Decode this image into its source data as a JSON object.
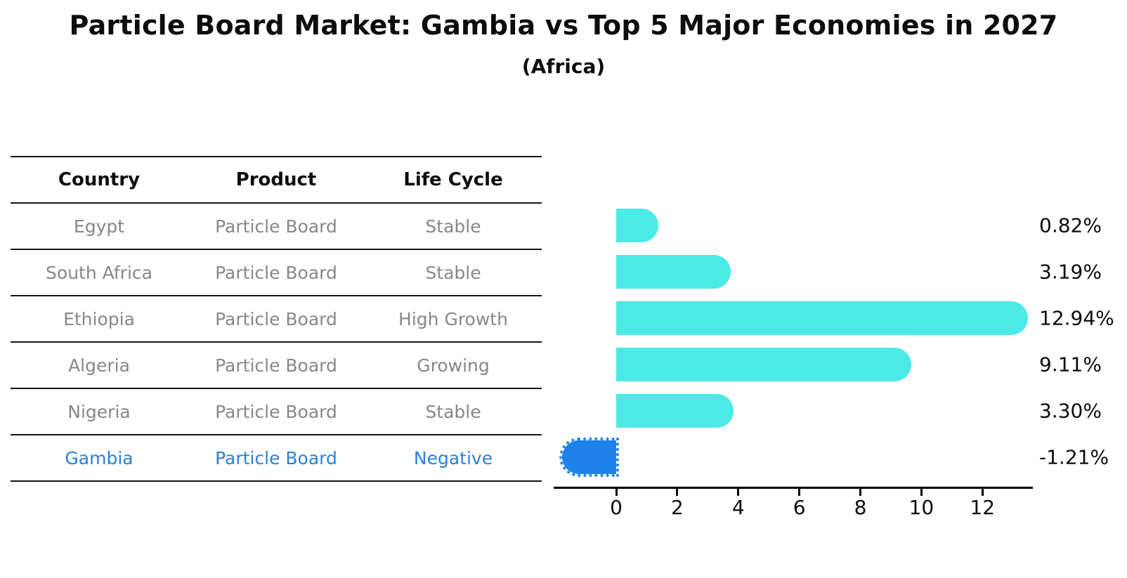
{
  "title": "Particle Board Market: Gambia vs Top 5 Major Economies in 2027",
  "subtitle": "(Africa)",
  "colors": {
    "bar_default": "#4CE9E6",
    "bar_highlight": "#1E82EA",
    "highlight_text": "#2980D9",
    "table_text": "#878787",
    "heading_text": "#0D0D0D",
    "axis": "#000000"
  },
  "table": {
    "headers": [
      "Country",
      "Product",
      "Life Cycle"
    ],
    "rows": [
      {
        "country": "Egypt",
        "product": "Particle Board",
        "life_cycle": "Stable",
        "highlight": false
      },
      {
        "country": "South Africa",
        "product": "Particle Board",
        "life_cycle": "Stable",
        "highlight": false
      },
      {
        "country": "Ethiopia",
        "product": "Particle Board",
        "life_cycle": "High Growth",
        "highlight": false
      },
      {
        "country": "Algeria",
        "product": "Particle Board",
        "life_cycle": "Growing",
        "highlight": false
      },
      {
        "country": "Nigeria",
        "product": "Particle Board",
        "life_cycle": "Stable",
        "highlight": false
      },
      {
        "country": "Gambia",
        "product": "Particle Board",
        "life_cycle": "Negative",
        "highlight": true
      }
    ]
  },
  "chart_data": {
    "type": "bar",
    "orientation": "horizontal",
    "title": "Particle Board Market: Gambia vs Top 5 Major Economies in 2027 (Africa)",
    "categories": [
      "Egypt",
      "South Africa",
      "Ethiopia",
      "Algeria",
      "Nigeria",
      "Gambia"
    ],
    "values": [
      0.82,
      3.19,
      12.94,
      9.11,
      3.3,
      -1.21
    ],
    "value_labels": [
      "0.82%",
      "3.19%",
      "12.94%",
      "9.11%",
      "3.30%",
      "-1.21%"
    ],
    "highlight_category": "Gambia",
    "x_ticks": [
      0,
      2,
      4,
      6,
      8,
      10,
      12
    ],
    "xlim": [
      -2.05,
      13.65
    ],
    "xlabel": "",
    "ylabel": "",
    "grid": false,
    "legend": false
  }
}
